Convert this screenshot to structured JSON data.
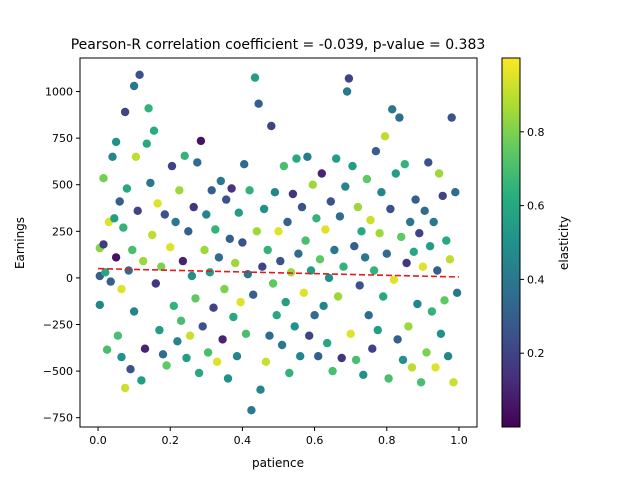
{
  "chart_data": {
    "type": "scatter",
    "title": "Pearson-R correlation coefficient = -0.039, p-value = 0.383",
    "xlabel": "patience",
    "ylabel": "Earnings",
    "xlim": [
      -0.05,
      1.05
    ],
    "ylim": [
      -800,
      1180
    ],
    "xticks": [
      0.0,
      0.2,
      0.4,
      0.6,
      0.8,
      1.0
    ],
    "xtick_labels": [
      "0.0",
      "0.2",
      "0.4",
      "0.6",
      "0.8",
      "1.0"
    ],
    "yticks": [
      -750,
      -500,
      -250,
      0,
      250,
      500,
      750,
      1000
    ],
    "ytick_labels": [
      "−750",
      "−500",
      "−250",
      "0",
      "250",
      "500",
      "750",
      "1000"
    ],
    "grid": false,
    "colorbar": {
      "label": "elasticity",
      "colormap": "viridis",
      "range": [
        0.0,
        1.0
      ],
      "ticks": [
        0.2,
        0.4,
        0.6,
        0.8
      ],
      "tick_labels": [
        "0.2",
        "0.4",
        "0.6",
        "0.8"
      ]
    },
    "trend_line": {
      "style": "dashed",
      "color": "#e41a1c",
      "x": [
        0.0,
        1.0
      ],
      "y": [
        50,
        5
      ]
    },
    "points": [
      [
        0.005,
        160,
        0.82
      ],
      [
        0.005,
        10,
        0.3
      ],
      [
        0.005,
        -145,
        0.45
      ],
      [
        0.015,
        535,
        0.78
      ],
      [
        0.015,
        180,
        0.18
      ],
      [
        0.02,
        30,
        0.6
      ],
      [
        0.025,
        -385,
        0.7
      ],
      [
        0.03,
        300,
        0.95
      ],
      [
        0.035,
        -20,
        0.3
      ],
      [
        0.04,
        650,
        0.45
      ],
      [
        0.045,
        320,
        0.55
      ],
      [
        0.05,
        730,
        0.5
      ],
      [
        0.05,
        110,
        0.05
      ],
      [
        0.055,
        -310,
        0.7
      ],
      [
        0.06,
        410,
        0.3
      ],
      [
        0.065,
        -60,
        0.95
      ],
      [
        0.065,
        -425,
        0.5
      ],
      [
        0.07,
        270,
        0.65
      ],
      [
        0.075,
        -590,
        0.92
      ],
      [
        0.075,
        890,
        0.2
      ],
      [
        0.08,
        480,
        0.6
      ],
      [
        0.085,
        40,
        0.35
      ],
      [
        0.09,
        -490,
        0.25
      ],
      [
        0.095,
        150,
        0.7
      ],
      [
        0.1,
        -180,
        0.45
      ],
      [
        0.1,
        1030,
        0.4
      ],
      [
        0.105,
        650,
        0.9
      ],
      [
        0.11,
        360,
        0.2
      ],
      [
        0.115,
        1090,
        0.25
      ],
      [
        0.12,
        -550,
        0.55
      ],
      [
        0.125,
        90,
        0.85
      ],
      [
        0.13,
        -380,
        0.1
      ],
      [
        0.135,
        720,
        0.6
      ],
      [
        0.14,
        910,
        0.65
      ],
      [
        0.145,
        510,
        0.4
      ],
      [
        0.15,
        230,
        0.9
      ],
      [
        0.155,
        790,
        0.62
      ],
      [
        0.16,
        -30,
        0.15
      ],
      [
        0.165,
        400,
        0.95
      ],
      [
        0.17,
        -280,
        0.55
      ],
      [
        0.175,
        60,
        0.8
      ],
      [
        0.18,
        -410,
        0.35
      ],
      [
        0.185,
        340,
        0.25
      ],
      [
        0.19,
        -470,
        0.75
      ],
      [
        0.2,
        165,
        0.95
      ],
      [
        0.205,
        600,
        0.2
      ],
      [
        0.21,
        -150,
        0.65
      ],
      [
        0.215,
        300,
        0.4
      ],
      [
        0.22,
        -340,
        0.45
      ],
      [
        0.225,
        470,
        0.85
      ],
      [
        0.23,
        -230,
        0.7
      ],
      [
        0.235,
        90,
        0.1
      ],
      [
        0.24,
        655,
        0.65
      ],
      [
        0.245,
        -430,
        0.55
      ],
      [
        0.25,
        250,
        0.3
      ],
      [
        0.255,
        -310,
        0.92
      ],
      [
        0.26,
        10,
        0.5
      ],
      [
        0.265,
        380,
        0.15
      ],
      [
        0.27,
        -110,
        0.75
      ],
      [
        0.275,
        620,
        0.35
      ],
      [
        0.28,
        -510,
        0.6
      ],
      [
        0.285,
        735,
        0.05
      ],
      [
        0.29,
        -260,
        0.25
      ],
      [
        0.295,
        150,
        0.85
      ],
      [
        0.3,
        340,
        0.45
      ],
      [
        0.305,
        -400,
        0.7
      ],
      [
        0.31,
        30,
        0.55
      ],
      [
        0.315,
        470,
        0.3
      ],
      [
        0.32,
        -160,
        0.2
      ],
      [
        0.325,
        260,
        0.65
      ],
      [
        0.33,
        -450,
        0.95
      ],
      [
        0.335,
        110,
        0.35
      ],
      [
        0.34,
        520,
        0.4
      ],
      [
        0.345,
        -330,
        0.1
      ],
      [
        0.35,
        -60,
        0.8
      ],
      [
        0.355,
        420,
        0.25
      ],
      [
        0.36,
        -540,
        0.5
      ],
      [
        0.365,
        210,
        0.3
      ],
      [
        0.37,
        480,
        0.15
      ],
      [
        0.375,
        -210,
        0.6
      ],
      [
        0.38,
        80,
        0.85
      ],
      [
        0.385,
        -420,
        0.45
      ],
      [
        0.39,
        350,
        0.55
      ],
      [
        0.395,
        -130,
        0.95
      ],
      [
        0.4,
        190,
        0.25
      ],
      [
        0.405,
        610,
        0.35
      ],
      [
        0.41,
        -300,
        0.7
      ],
      [
        0.415,
        20,
        0.4
      ],
      [
        0.42,
        470,
        0.65
      ],
      [
        0.425,
        -710,
        0.4
      ],
      [
        0.43,
        -90,
        0.3
      ],
      [
        0.435,
        1075,
        0.55
      ],
      [
        0.44,
        250,
        0.85
      ],
      [
        0.445,
        935,
        0.3
      ],
      [
        0.45,
        -600,
        0.45
      ],
      [
        0.455,
        60,
        0.2
      ],
      [
        0.46,
        370,
        0.5
      ],
      [
        0.465,
        -450,
        0.92
      ],
      [
        0.47,
        150,
        0.65
      ],
      [
        0.475,
        -310,
        0.35
      ],
      [
        0.48,
        815,
        0.2
      ],
      [
        0.485,
        -30,
        0.75
      ],
      [
        0.49,
        460,
        0.45
      ],
      [
        0.495,
        -200,
        0.6
      ],
      [
        0.5,
        250,
        0.95
      ],
      [
        0.505,
        90,
        0.25
      ],
      [
        0.51,
        -360,
        0.4
      ],
      [
        0.515,
        600,
        0.7
      ],
      [
        0.52,
        -130,
        0.55
      ],
      [
        0.525,
        300,
        0.3
      ],
      [
        0.53,
        -510,
        0.65
      ],
      [
        0.535,
        30,
        0.85
      ],
      [
        0.54,
        450,
        0.15
      ],
      [
        0.545,
        -260,
        0.5
      ],
      [
        0.55,
        640,
        0.6
      ],
      [
        0.555,
        130,
        0.35
      ],
      [
        0.56,
        -420,
        0.45
      ],
      [
        0.565,
        380,
        0.25
      ],
      [
        0.57,
        -80,
        0.95
      ],
      [
        0.575,
        200,
        0.7
      ],
      [
        0.58,
        650,
        0.4
      ],
      [
        0.585,
        -310,
        0.2
      ],
      [
        0.59,
        40,
        0.55
      ],
      [
        0.595,
        500,
        0.85
      ],
      [
        0.6,
        -200,
        0.35
      ],
      [
        0.605,
        320,
        0.65
      ],
      [
        0.61,
        -420,
        0.3
      ],
      [
        0.615,
        100,
        0.75
      ],
      [
        0.62,
        560,
        0.1
      ],
      [
        0.625,
        -150,
        0.45
      ],
      [
        0.63,
        260,
        0.95
      ],
      [
        0.635,
        -350,
        0.6
      ],
      [
        0.64,
        0,
        0.5
      ],
      [
        0.645,
        410,
        0.25
      ],
      [
        0.65,
        -500,
        0.7
      ],
      [
        0.655,
        150,
        0.4
      ],
      [
        0.66,
        640,
        0.55
      ],
      [
        0.665,
        -100,
        0.85
      ],
      [
        0.67,
        330,
        0.35
      ],
      [
        0.675,
        -430,
        0.15
      ],
      [
        0.68,
        60,
        0.65
      ],
      [
        0.685,
        490,
        0.45
      ],
      [
        0.69,
        1000,
        0.4
      ],
      [
        0.695,
        1070,
        0.2
      ],
      [
        0.7,
        -300,
        0.95
      ],
      [
        0.705,
        600,
        0.55
      ],
      [
        0.71,
        170,
        0.3
      ],
      [
        0.715,
        -440,
        0.7
      ],
      [
        0.72,
        380,
        0.85
      ],
      [
        0.725,
        -40,
        0.25
      ],
      [
        0.73,
        250,
        0.6
      ],
      [
        0.735,
        -520,
        0.5
      ],
      [
        0.74,
        110,
        0.4
      ],
      [
        0.745,
        530,
        0.75
      ],
      [
        0.75,
        -200,
        0.35
      ],
      [
        0.755,
        310,
        0.92
      ],
      [
        0.76,
        -380,
        0.2
      ],
      [
        0.765,
        40,
        0.65
      ],
      [
        0.77,
        680,
        0.3
      ],
      [
        0.775,
        -280,
        0.55
      ],
      [
        0.78,
        240,
        0.85
      ],
      [
        0.785,
        460,
        0.45
      ],
      [
        0.79,
        -100,
        0.6
      ],
      [
        0.795,
        760,
        0.9
      ],
      [
        0.8,
        130,
        0.35
      ],
      [
        0.805,
        -540,
        0.7
      ],
      [
        0.81,
        370,
        0.25
      ],
      [
        0.815,
        905,
        0.4
      ],
      [
        0.82,
        -10,
        0.95
      ],
      [
        0.825,
        560,
        0.55
      ],
      [
        0.83,
        -330,
        0.3
      ],
      [
        0.835,
        860,
        0.35
      ],
      [
        0.84,
        220,
        0.75
      ],
      [
        0.845,
        -440,
        0.5
      ],
      [
        0.85,
        610,
        0.65
      ],
      [
        0.855,
        80,
        0.15
      ],
      [
        0.86,
        -260,
        0.85
      ],
      [
        0.865,
        300,
        0.4
      ],
      [
        0.87,
        -480,
        0.9
      ],
      [
        0.875,
        140,
        0.6
      ],
      [
        0.88,
        420,
        0.3
      ],
      [
        0.885,
        -140,
        0.45
      ],
      [
        0.89,
        240,
        0.2
      ],
      [
        0.895,
        -560,
        0.7
      ],
      [
        0.9,
        60,
        0.95
      ],
      [
        0.905,
        360,
        0.35
      ],
      [
        0.91,
        -400,
        0.8
      ],
      [
        0.915,
        620,
        0.25
      ],
      [
        0.92,
        170,
        0.55
      ],
      [
        0.925,
        -180,
        0.65
      ],
      [
        0.93,
        300,
        0.4
      ],
      [
        0.935,
        -480,
        0.95
      ],
      [
        0.94,
        40,
        0.3
      ],
      [
        0.945,
        560,
        0.85
      ],
      [
        0.95,
        -300,
        0.5
      ],
      [
        0.955,
        440,
        0.2
      ],
      [
        0.96,
        -120,
        0.75
      ],
      [
        0.965,
        200,
        0.6
      ],
      [
        0.97,
        -420,
        0.45
      ],
      [
        0.975,
        100,
        0.9
      ],
      [
        0.98,
        860,
        0.25
      ],
      [
        0.985,
        -560,
        0.92
      ],
      [
        0.99,
        460,
        0.35
      ],
      [
        0.995,
        -80,
        0.4
      ]
    ]
  }
}
